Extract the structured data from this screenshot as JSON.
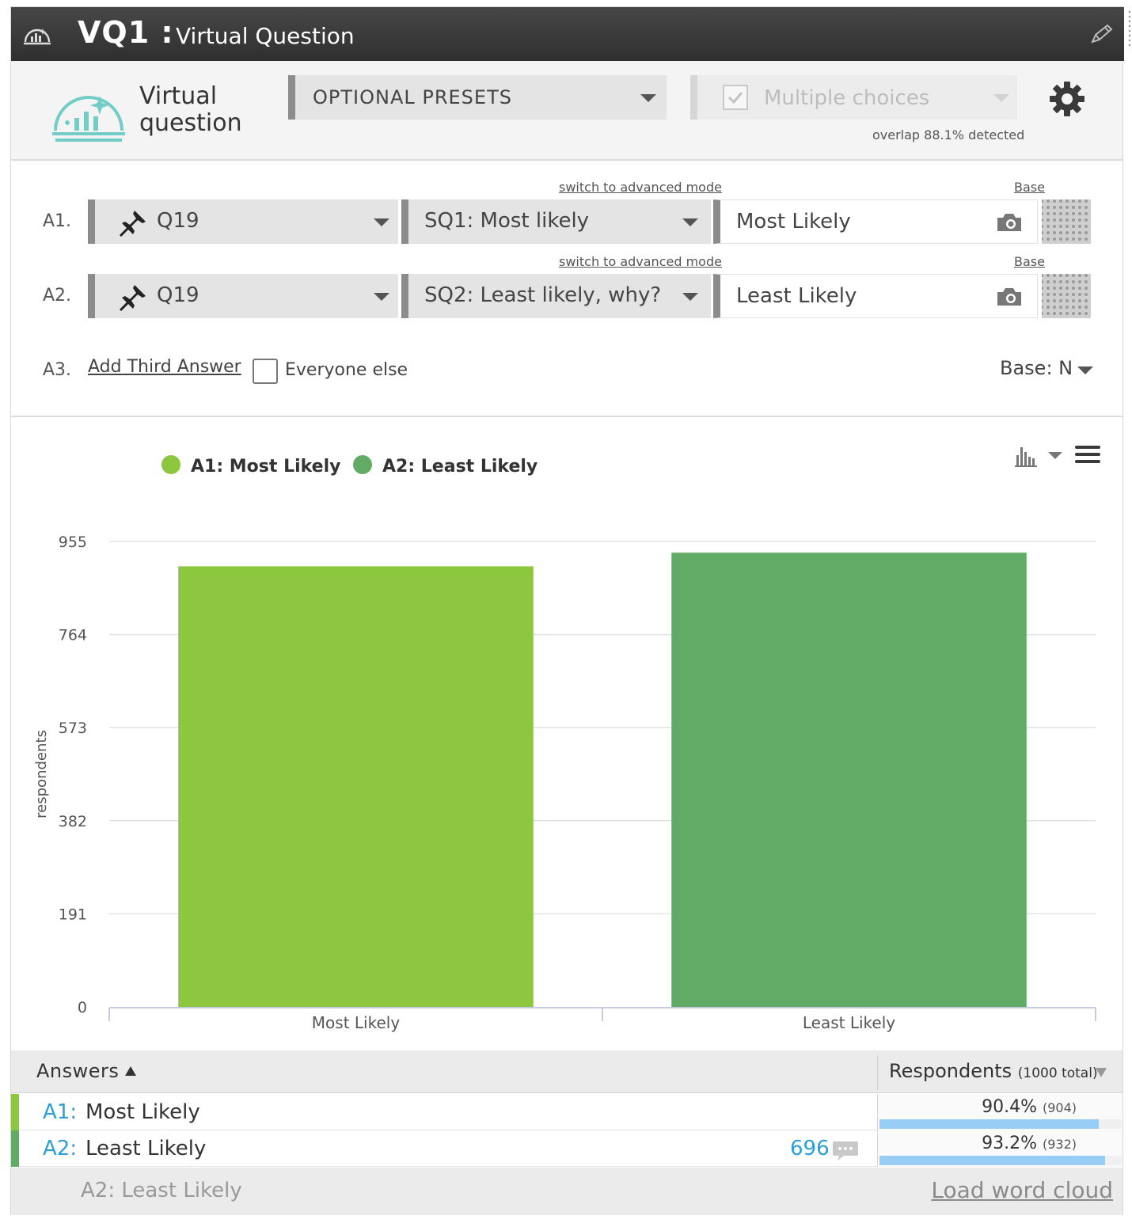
{
  "title": {
    "id": "VQ1 :",
    "name": "Virtual Question",
    "icon": "chart-dome-icon",
    "edit_icon": "pencil-icon"
  },
  "header": {
    "label_line1": "Virtual",
    "label_line2": "question",
    "presets_label": "OPTIONAL PRESETS",
    "multiple_choices_label": "Multiple choices",
    "multiple_choices_checked": true,
    "overlap_text": "overlap 88.1% detected"
  },
  "config": {
    "rows": [
      {
        "label": "A1.",
        "advanced_link": "switch to advanced mode",
        "question": "Q19",
        "subquestion": "SQ1: Most likely",
        "base_link": "Base",
        "answer_text": "Most Likely"
      },
      {
        "label": "A2.",
        "advanced_link": "switch to advanced mode",
        "question": "Q19",
        "subquestion": "SQ2: Least likely, why?",
        "base_link": "Base",
        "answer_text": "Least Likely"
      }
    ],
    "a3_label": "A3.",
    "add_third": "Add Third Answer",
    "everyone_else": "Everyone else",
    "base": "Base: N"
  },
  "chart_data": {
    "type": "bar",
    "categories": [
      "Most Likely",
      "Least Likely"
    ],
    "series": [
      {
        "name": "A1: Most Likely",
        "values": [
          904,
          null
        ],
        "color": "#8dc63f"
      },
      {
        "name": "A2: Least Likely",
        "values": [
          null,
          932
        ],
        "color": "#62ab67"
      }
    ],
    "values": [
      904,
      932
    ],
    "colors": [
      "#8dc63f",
      "#62ab67"
    ],
    "ylabel": "respondents",
    "yticks": [
      0,
      191,
      382,
      573,
      764,
      955
    ],
    "ylim": [
      0,
      955
    ],
    "grid": true,
    "legend": "top-left"
  },
  "table": {
    "answers_header": "Answers",
    "respondents_header": "Respondents",
    "respondents_total": "(1000 total)",
    "rows": [
      {
        "code": "A1:",
        "label": "Most Likely",
        "pct": "90.4%",
        "count": "(904)",
        "fraction": 0.904,
        "color": "#8dc63f",
        "comments": ""
      },
      {
        "code": "A2:",
        "label": "Least Likely",
        "pct": "93.2%",
        "count": "(932)",
        "fraction": 0.932,
        "color": "#62ab67",
        "comments": "696"
      }
    ]
  },
  "footer": {
    "label": "A2: Least Likely",
    "load_word_cloud": "Load word cloud"
  }
}
